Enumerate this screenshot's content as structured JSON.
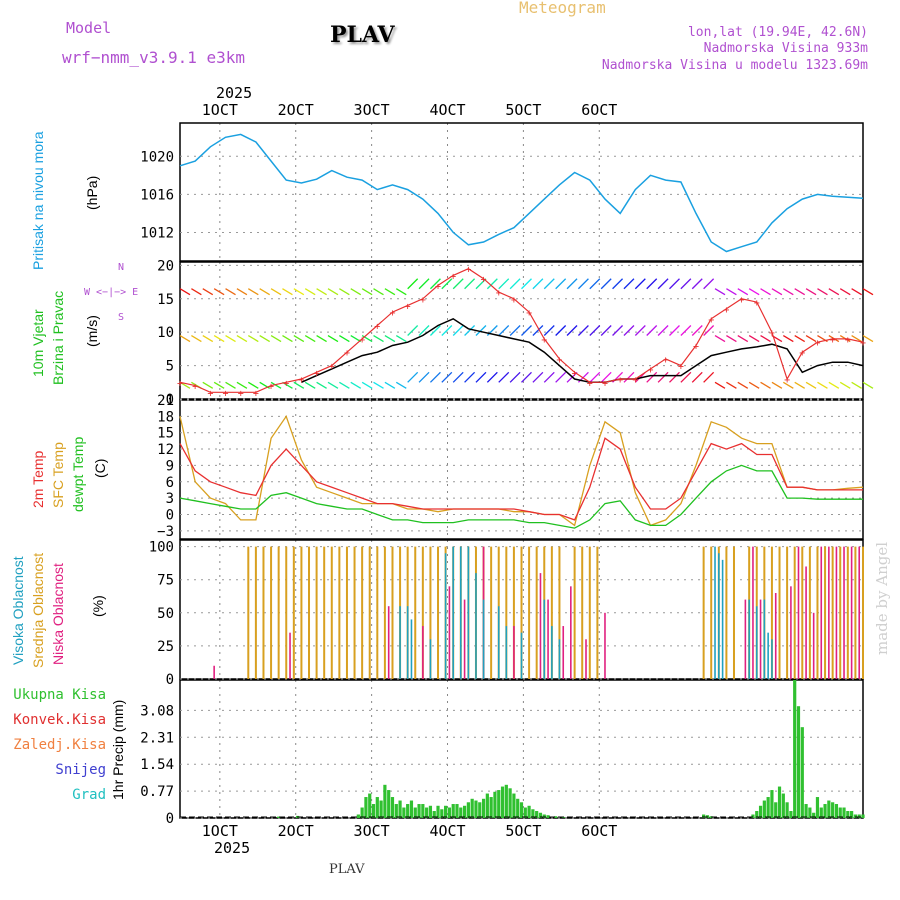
{
  "header": {
    "model_label": "Model",
    "model_name": "wrf−nmm_v3.9.1 e3km",
    "station": "PLAV",
    "title": "Meteogram",
    "lonlat": "lon,lat (19.94E, 42.6N)",
    "altitude": "Nadmorska Visina 933m",
    "model_altitude": "Nadmorska Visina u modelu 1323.69m",
    "year_top": "2025",
    "year_bottom": "2025",
    "footer_station": "PLAV",
    "watermark": "made by Angel"
  },
  "colors": {
    "pressure": "#1aa0e0",
    "temp2m": "#e83030",
    "sfc": "#d8a020",
    "dew": "#20c020",
    "cloud_high": "#20a0c0",
    "cloud_mid": "#d8a020",
    "cloud_low": "#e02080",
    "precip_total": "#30c030",
    "precip_conv": "#e03030",
    "precip_snow": "#4040d0"
  },
  "chart_data": [
    {
      "type": "line",
      "name": "pressure",
      "title": "Pritisak na nivou mora",
      "ylabel": "(hPa)",
      "x_tick_labels": [
        "1OCT",
        "2OCT",
        "3OCT",
        "4OCT",
        "5OCT",
        "6OCT"
      ],
      "ylim": [
        1009,
        1023.5
      ],
      "yticks": [
        "1012",
        "1016",
        "1020"
      ],
      "x": [
        0,
        4,
        8,
        12,
        16,
        20,
        24,
        28,
        32,
        36,
        40,
        44,
        48,
        52,
        56,
        60,
        64,
        68,
        72,
        76,
        80,
        84,
        88,
        92,
        96,
        100,
        104,
        108,
        112,
        116,
        120,
        124,
        128,
        132,
        136,
        140,
        144,
        148,
        152,
        156,
        160,
        164,
        168,
        172,
        176,
        180
      ],
      "values": [
        1019,
        1019.5,
        1021,
        1022,
        1022.3,
        1021.5,
        1019.5,
        1017.5,
        1017.2,
        1017.6,
        1018.5,
        1017.8,
        1017.5,
        1016.5,
        1017,
        1016.5,
        1015.5,
        1014,
        1012,
        1010.7,
        1011,
        1011.8,
        1012.5,
        1014,
        1015.5,
        1017,
        1018.3,
        1017.5,
        1015.5,
        1014,
        1016.5,
        1018,
        1017.5,
        1017.3,
        1014,
        1011,
        1010,
        1010.5,
        1011,
        1013,
        1014.5,
        1015.5,
        1016,
        1015.8,
        1015.7,
        1015.6
      ]
    },
    {
      "type": "line",
      "name": "wind",
      "title": "10m Vjetar Brzina i Pravac",
      "ylabel": "(m/s)",
      "compass": "W <−|−> E",
      "compass_n": "N",
      "compass_s": "S",
      "ylim": [
        0,
        20.5
      ],
      "yticks": [
        "0",
        "5",
        "10",
        "15",
        "20"
      ],
      "x": [
        0,
        4,
        8,
        12,
        16,
        20,
        24,
        28,
        32,
        36,
        40,
        44,
        48,
        52,
        56,
        60,
        64,
        68,
        72,
        76,
        80,
        84,
        88,
        92,
        96,
        100,
        104,
        108,
        112,
        116,
        120,
        124,
        128,
        132,
        136,
        140,
        144,
        148,
        152,
        156,
        160,
        164,
        168,
        172,
        176,
        180
      ],
      "speed": [
        null,
        null,
        null,
        null,
        null,
        null,
        null,
        null,
        2.5,
        3.5,
        4.5,
        5.5,
        6.5,
        7,
        8,
        8.5,
        9.5,
        11,
        12,
        10.5,
        10,
        9.5,
        9,
        8.5,
        7,
        5,
        3,
        2.5,
        2.5,
        3,
        3,
        3.5,
        3.5,
        3.5,
        5,
        6.5,
        7,
        7.5,
        7.8,
        8.2,
        7.5,
        4,
        5,
        5.5,
        5.5,
        5
      ],
      "gust": [
        2.5,
        2,
        1,
        1,
        1,
        1,
        2,
        2.5,
        3,
        4,
        5,
        7,
        9,
        11,
        13,
        14,
        15,
        17,
        18.5,
        19.5,
        18,
        16,
        15,
        13,
        9,
        6,
        4,
        2.5,
        2.5,
        3,
        3,
        4.5,
        6,
        5,
        8,
        12,
        13.5,
        15,
        14.5,
        10,
        3,
        7,
        8.5,
        9,
        9,
        8.5
      ]
    },
    {
      "type": "line",
      "name": "temperature",
      "title": "2m Temp",
      "title2": "SFC Temp",
      "title3": "dewpt Temp",
      "ylabel": "(C)",
      "ylim": [
        -4.5,
        21
      ],
      "yticks": [
        "−3",
        "0",
        "3",
        "6",
        "9",
        "12",
        "15",
        "18",
        "21"
      ],
      "x": [
        0,
        4,
        8,
        12,
        16,
        20,
        24,
        28,
        32,
        36,
        40,
        44,
        48,
        52,
        56,
        60,
        64,
        68,
        72,
        76,
        80,
        84,
        88,
        92,
        96,
        100,
        104,
        108,
        112,
        116,
        120,
        124,
        128,
        132,
        136,
        140,
        144,
        148,
        152,
        156,
        160,
        164,
        168,
        172,
        176,
        180
      ],
      "temp2m": [
        13,
        8,
        6,
        5,
        4,
        3.5,
        9,
        12,
        9,
        6,
        5,
        4,
        3,
        2,
        2,
        1.5,
        1,
        1,
        1,
        1,
        1,
        1,
        1,
        0.5,
        0,
        0,
        -1,
        5,
        14,
        12,
        5,
        1,
        1,
        3,
        8,
        13,
        12,
        13,
        11,
        11,
        5,
        5,
        4.5,
        4.5,
        4.5,
        4.5
      ],
      "sfc": [
        18,
        6,
        3,
        2,
        -1,
        -1,
        14,
        18,
        10,
        5,
        4,
        3,
        2,
        2,
        2,
        1,
        1,
        0.5,
        1,
        1,
        1,
        1,
        0.5,
        0.5,
        0,
        0,
        -2,
        9,
        17,
        15,
        4,
        -2,
        -1,
        2,
        9,
        17,
        16,
        14,
        13,
        13,
        5,
        5,
        4.5,
        4.5,
        4.8,
        5
      ],
      "dew": [
        3,
        2.5,
        2,
        1.5,
        1,
        1,
        3.5,
        4,
        3,
        2,
        1.5,
        1,
        1,
        0,
        -1,
        -1,
        -1.5,
        -1.5,
        -1.5,
        -1,
        -1,
        -1,
        -1,
        -1.5,
        -1.5,
        -2,
        -2.5,
        -1,
        2,
        2.5,
        -1,
        -2,
        -2,
        0,
        3,
        6,
        8,
        9,
        8,
        8,
        3,
        3,
        2.8,
        2.8,
        2.8,
        2.8
      ]
    },
    {
      "type": "bar",
      "name": "clouds",
      "title": "Visoka Oblacnost",
      "title2": "Srednja Oblacnost",
      "title3": "Niska Oblacnost",
      "ylabel": "(%)",
      "ylim": [
        0,
        105
      ],
      "yticks": [
        "0",
        "25",
        "50",
        "75",
        "100"
      ],
      "mid_x": [
        18,
        20,
        22,
        24,
        26,
        28,
        30,
        32,
        34,
        36,
        38,
        40,
        42,
        44,
        46,
        48,
        50,
        52,
        54,
        56,
        58,
        60,
        62,
        64,
        66,
        68,
        70,
        72,
        74,
        76,
        78,
        80,
        82,
        84,
        86,
        88,
        90,
        92,
        94,
        96,
        98,
        100,
        104,
        106,
        108,
        110,
        138,
        140,
        142,
        144,
        146,
        150,
        152,
        154,
        156,
        158,
        160,
        162,
        164,
        166,
        168,
        170,
        172,
        174,
        176,
        178,
        180
      ],
      "mid_values": [
        100,
        100,
        100,
        100,
        100,
        100,
        100,
        100,
        100,
        100,
        100,
        100,
        100,
        100,
        100,
        100,
        100,
        100,
        100,
        100,
        100,
        100,
        100,
        100,
        100,
        100,
        100,
        100,
        100,
        100,
        100,
        100,
        100,
        100,
        100,
        100,
        100,
        100,
        100,
        100,
        100,
        100,
        100,
        100,
        100,
        100,
        100,
        100,
        100,
        100,
        100,
        100,
        100,
        100,
        100,
        100,
        100,
        100,
        100,
        100,
        100,
        100,
        100,
        100,
        100,
        100,
        100
      ],
      "low_x": [
        9,
        29,
        55,
        64,
        71,
        75,
        80,
        88,
        95,
        97,
        101,
        103,
        107,
        112,
        149,
        151,
        153,
        157,
        161,
        163,
        165,
        167,
        169,
        171,
        173,
        175,
        177,
        179
      ],
      "low_values": [
        10,
        35,
        55,
        40,
        70,
        60,
        100,
        40,
        80,
        60,
        40,
        70,
        30,
        50,
        60,
        100,
        60,
        65,
        70,
        100,
        85,
        50,
        100,
        100,
        100,
        100,
        100,
        100
      ],
      "high_x": [
        58,
        60,
        61,
        66,
        70,
        72,
        74,
        76,
        78,
        80,
        84,
        86,
        90,
        96,
        98,
        100,
        141,
        142,
        143,
        150,
        152,
        154,
        155,
        156
      ],
      "high_values": [
        55,
        55,
        45,
        30,
        95,
        100,
        100,
        100,
        80,
        60,
        55,
        40,
        35,
        60,
        40,
        30,
        100,
        95,
        90,
        60,
        55,
        60,
        35,
        30
      ]
    },
    {
      "type": "bar",
      "name": "precipitation",
      "title": "Ukupna Kisa",
      "title2": "Konvek.Kisa",
      "title3": "Zaledj.Kisa",
      "title4": "Snijeg",
      "title5": "Grad",
      "ylabel": "1hr Precip (mm)",
      "ylim": [
        0,
        3.95
      ],
      "yticks": [
        "0",
        "0.77",
        "1.54",
        "2.31",
        "3.08"
      ],
      "x_tick_labels": [
        "1OCT",
        "2OCT",
        "3OCT",
        "4OCT",
        "5OCT",
        "6OCT"
      ],
      "x": [
        26,
        31,
        47,
        48,
        49,
        50,
        51,
        52,
        53,
        54,
        55,
        56,
        57,
        58,
        59,
        60,
        61,
        62,
        63,
        64,
        65,
        66,
        67,
        68,
        69,
        70,
        71,
        72,
        73,
        74,
        75,
        76,
        77,
        78,
        79,
        80,
        81,
        82,
        83,
        84,
        85,
        86,
        87,
        88,
        89,
        90,
        91,
        92,
        93,
        94,
        95,
        96,
        97,
        99,
        101,
        138,
        139,
        140,
        151,
        152,
        153,
        154,
        155,
        156,
        157,
        158,
        159,
        160,
        161,
        162,
        163,
        164,
        165,
        166,
        167,
        168,
        169,
        170,
        171,
        172,
        173,
        174,
        175,
        176,
        177,
        178,
        179,
        180
      ],
      "values": [
        0.04,
        0.06,
        0.1,
        0.3,
        0.6,
        0.7,
        0.4,
        0.6,
        0.5,
        0.95,
        0.8,
        0.6,
        0.4,
        0.5,
        0.3,
        0.4,
        0.5,
        0.3,
        0.4,
        0.4,
        0.3,
        0.35,
        0.2,
        0.35,
        0.25,
        0.35,
        0.3,
        0.4,
        0.4,
        0.3,
        0.35,
        0.45,
        0.55,
        0.5,
        0.45,
        0.55,
        0.7,
        0.6,
        0.75,
        0.8,
        0.9,
        0.95,
        0.85,
        0.7,
        0.55,
        0.45,
        0.3,
        0.35,
        0.25,
        0.2,
        0.15,
        0.1,
        0.08,
        0.05,
        0.03,
        0.1,
        0.08,
        0.05,
        0.1,
        0.2,
        0.35,
        0.5,
        0.6,
        0.8,
        0.45,
        0.9,
        0.7,
        0.45,
        0.2,
        3.95,
        3.2,
        2.6,
        0.4,
        0.3,
        0.15,
        0.6,
        0.3,
        0.4,
        0.5,
        0.45,
        0.4,
        0.3,
        0.3,
        0.2,
        0.2,
        0.1,
        0.1,
        0.1
      ]
    }
  ]
}
